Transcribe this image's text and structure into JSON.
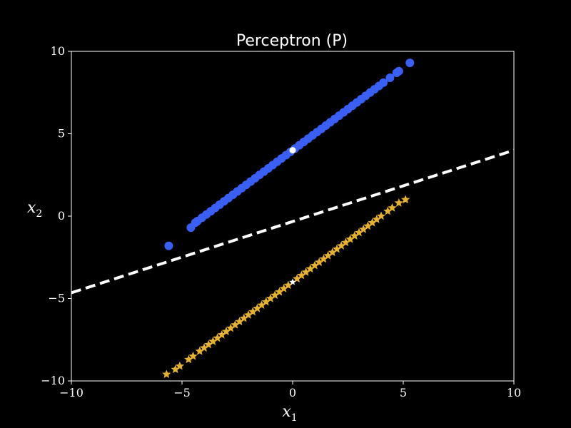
{
  "chart_data": {
    "type": "scatter",
    "title": "Perceptron (P)",
    "xlabel": "x",
    "xlabel_sub": "1",
    "ylabel": "x",
    "ylabel_sub": "2",
    "xlim": [
      -10,
      10
    ],
    "ylim": [
      -10,
      10
    ],
    "xticks": [
      -10,
      -5,
      0,
      5,
      10
    ],
    "yticks": [
      -10,
      -5,
      0,
      5,
      10
    ],
    "xtick_labels": [
      "−10",
      "−5",
      "0",
      "5",
      "10"
    ],
    "ytick_labels": [
      "−10",
      "−5",
      "0",
      "5",
      "10"
    ],
    "background": "#000000",
    "grid": false,
    "series": [
      {
        "marker": "circle",
        "color": "#3a5ff5",
        "x": [
          -5.6,
          -4.6,
          -4.4,
          -4.3,
          -4.1,
          -3.9,
          -3.7,
          -3.5,
          -3.3,
          -3.1,
          -2.9,
          -2.7,
          -2.5,
          -2.3,
          -2.1,
          -1.9,
          -1.7,
          -1.5,
          -1.3,
          -1.1,
          -0.9,
          -0.7,
          -0.5,
          -0.3,
          -0.1,
          0.1,
          0.3,
          0.5,
          0.7,
          0.9,
          1.1,
          1.3,
          1.5,
          1.7,
          1.9,
          2.1,
          2.3,
          2.5,
          2.7,
          2.9,
          3.1,
          3.3,
          3.5,
          3.7,
          3.9,
          4.1,
          4.4,
          4.7,
          4.8,
          5.3
        ],
        "y": [
          -1.8,
          -0.7,
          -0.4,
          -0.3,
          -0.1,
          0.1,
          0.3,
          0.5,
          0.7,
          0.9,
          1.1,
          1.3,
          1.5,
          1.7,
          1.9,
          2.1,
          2.3,
          2.5,
          2.7,
          2.9,
          3.1,
          3.3,
          3.5,
          3.7,
          3.9,
          4.1,
          4.3,
          4.5,
          4.7,
          4.9,
          5.1,
          5.3,
          5.5,
          5.7,
          5.9,
          6.1,
          6.3,
          6.5,
          6.7,
          6.9,
          7.1,
          7.3,
          7.5,
          7.7,
          7.9,
          8.1,
          8.4,
          8.7,
          8.8,
          9.3
        ]
      },
      {
        "marker": "star",
        "color": "#e6b12e",
        "x": [
          -5.7,
          -5.3,
          -5.1,
          -4.7,
          -4.5,
          -4.2,
          -4.0,
          -3.8,
          -3.6,
          -3.4,
          -3.2,
          -3.0,
          -2.8,
          -2.6,
          -2.4,
          -2.2,
          -2.0,
          -1.8,
          -1.6,
          -1.4,
          -1.2,
          -1.0,
          -0.8,
          -0.6,
          -0.4,
          -0.2,
          0.2,
          0.4,
          0.6,
          0.8,
          1.0,
          1.2,
          1.4,
          1.6,
          1.8,
          2.0,
          2.2,
          2.4,
          2.6,
          2.8,
          3.0,
          3.2,
          3.4,
          3.6,
          3.8,
          4.0,
          4.3,
          4.5,
          4.8,
          5.1
        ],
        "y": [
          -9.6,
          -9.3,
          -9.1,
          -8.7,
          -8.5,
          -8.2,
          -8.0,
          -7.8,
          -7.6,
          -7.4,
          -7.2,
          -7.0,
          -6.8,
          -6.6,
          -6.4,
          -6.2,
          -6.0,
          -5.8,
          -5.6,
          -5.4,
          -5.2,
          -5.0,
          -4.8,
          -4.6,
          -4.4,
          -4.2,
          -3.8,
          -3.6,
          -3.4,
          -3.2,
          -3.0,
          -2.8,
          -2.6,
          -2.4,
          -2.2,
          -2.0,
          -1.8,
          -1.6,
          -1.4,
          -1.2,
          -1.0,
          -0.8,
          -0.6,
          -0.4,
          -0.2,
          0.0,
          0.3,
          0.5,
          0.8,
          1.0
        ]
      }
    ],
    "highlight_points": [
      {
        "x": 0,
        "y": 4,
        "marker": "circle",
        "color": "#ffffff"
      },
      {
        "x": 0,
        "y": -4,
        "marker": "star",
        "color": "#ffffff"
      }
    ],
    "decision_boundary": {
      "style": "dashed",
      "color": "#ffffff",
      "x": [
        -10,
        10
      ],
      "y": [
        -4.65,
        4.0
      ]
    }
  }
}
